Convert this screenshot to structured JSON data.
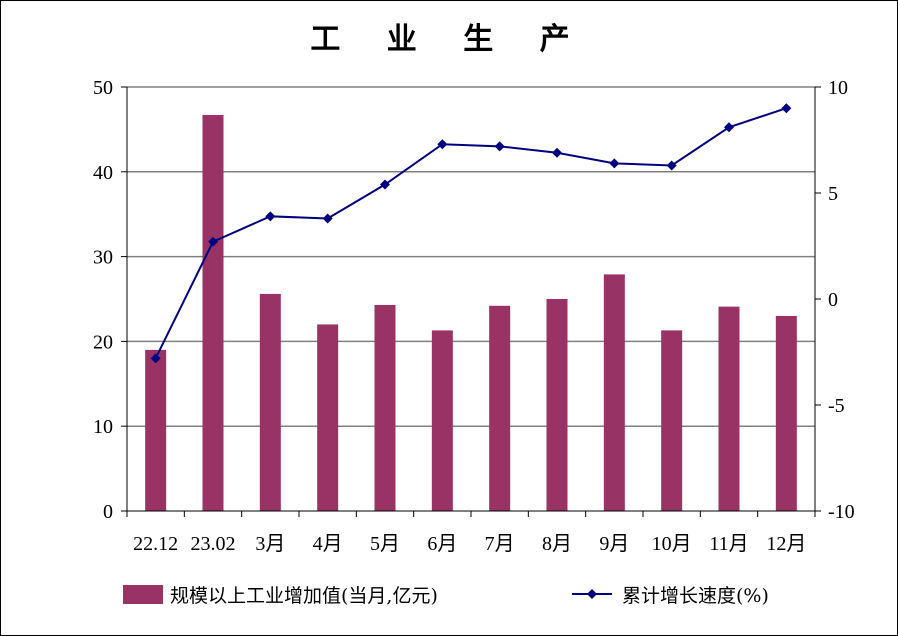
{
  "chart_data": {
    "type": "bar+line",
    "title": "工 业 生 产",
    "categories": [
      "22.12",
      "23.02",
      "3月",
      "4月",
      "5月",
      "6月",
      "7月",
      "8月",
      "9月",
      "10月",
      "11月",
      "12月"
    ],
    "series": [
      {
        "name": "规模以上工业增加值(当月,亿元)",
        "type": "bar",
        "axis": "left",
        "color": "#993366",
        "values": [
          19.0,
          46.7,
          25.6,
          22.0,
          24.3,
          21.3,
          24.2,
          25.0,
          27.9,
          21.3,
          24.1,
          23.0
        ]
      },
      {
        "name": "累计增长速度(%)",
        "type": "line",
        "axis": "right",
        "color": "#000080",
        "values": [
          -2.8,
          2.7,
          3.9,
          3.8,
          5.4,
          7.3,
          7.2,
          6.9,
          6.4,
          6.3,
          8.1,
          9.0
        ]
      }
    ],
    "y_left": {
      "min": 0,
      "max": 50,
      "ticks": [
        0,
        10,
        20,
        30,
        40,
        50
      ]
    },
    "y_right": {
      "min": -10,
      "max": 10,
      "ticks": [
        -10,
        -5,
        0,
        5,
        10
      ]
    },
    "grid": true,
    "legend_position": "bottom"
  }
}
